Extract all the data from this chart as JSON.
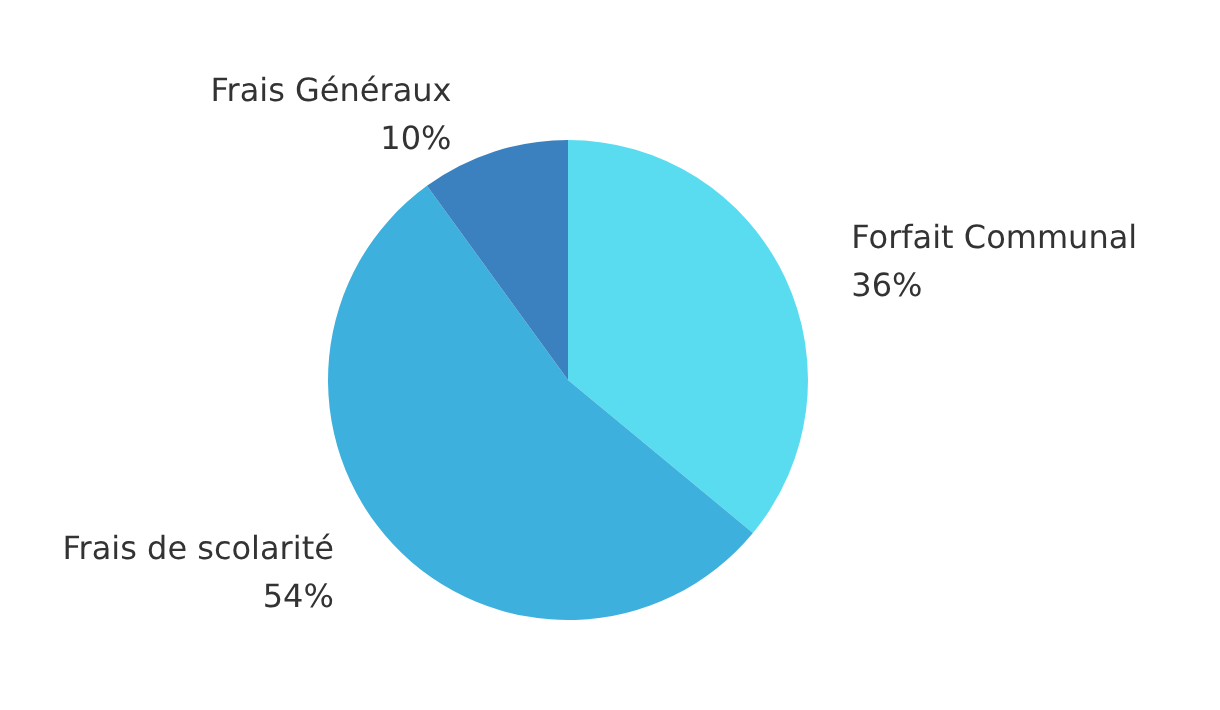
{
  "chart_data": {
    "type": "pie",
    "categories": [
      "Forfait Communal",
      "Frais de scolarité",
      "Frais Généraux"
    ],
    "values": [
      36,
      54,
      10
    ],
    "value_labels": [
      "36%",
      "54%",
      "10%"
    ],
    "colors": [
      "#5adcf0",
      "#3eb0dd",
      "#3b80bf"
    ],
    "legend": false
  }
}
